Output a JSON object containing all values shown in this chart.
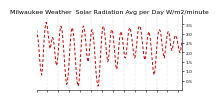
{
  "title": "Milwaukee Weather  Solar Radiation Avg per Day W/m2/minute",
  "title_fontsize": 4.5,
  "bg_color": "#ffffff",
  "line_color": "#cc0000",
  "grid_color": "#bbbbbb",
  "y_values": [
    3.2,
    3.0,
    2.8,
    2.5,
    2.1,
    1.6,
    1.2,
    0.9,
    0.8,
    1.1,
    1.6,
    2.2,
    2.8,
    3.2,
    3.5,
    3.6,
    3.5,
    3.3,
    3.0,
    2.7,
    2.4,
    2.2,
    2.3,
    2.5,
    2.7,
    2.8,
    2.7,
    2.5,
    2.2,
    1.8,
    1.5,
    1.3,
    1.4,
    1.7,
    2.1,
    2.6,
    3.0,
    3.3,
    3.4,
    3.3,
    3.1,
    2.7,
    2.3,
    1.8,
    1.3,
    0.8,
    0.5,
    0.3,
    0.4,
    0.7,
    1.1,
    1.7,
    2.2,
    2.7,
    3.1,
    3.3,
    3.3,
    3.1,
    2.8,
    2.4,
    1.9,
    1.4,
    0.9,
    0.5,
    0.3,
    0.2,
    0.4,
    0.8,
    1.4,
    2.0,
    2.6,
    3.0,
    3.3,
    3.4,
    3.3,
    3.1,
    2.8,
    2.4,
    2.0,
    1.7,
    1.5,
    1.6,
    1.9,
    2.3,
    2.7,
    3.0,
    3.2,
    3.2,
    3.0,
    2.7,
    2.3,
    1.8,
    1.3,
    0.8,
    0.5,
    0.3,
    0.2,
    0.4,
    0.8,
    1.4,
    2.0,
    2.6,
    3.0,
    3.3,
    3.4,
    3.3,
    3.1,
    2.8,
    2.4,
    2.0,
    1.7,
    1.5,
    1.6,
    1.9,
    2.4,
    2.8,
    3.1,
    3.2,
    3.2,
    3.0,
    2.7,
    2.3,
    1.9,
    1.5,
    1.2,
    1.1,
    1.3,
    1.7,
    2.2,
    2.6,
    2.9,
    3.1,
    3.1,
    2.9,
    2.7,
    2.4,
    2.1,
    1.8,
    1.7,
    1.8,
    2.0,
    2.3,
    2.7,
    3.0,
    3.2,
    3.3,
    3.3,
    3.1,
    2.9,
    2.6,
    2.3,
    2.0,
    1.8,
    1.7,
    1.8,
    2.1,
    2.4,
    2.8,
    3.1,
    3.3,
    3.4,
    3.4,
    3.3,
    3.1,
    2.8,
    2.5,
    2.2,
    1.9,
    1.7,
    1.6,
    1.8,
    2.1,
    2.5,
    2.8,
    3.0,
    3.1,
    3.0,
    2.8,
    2.5,
    2.1,
    1.7,
    1.3,
    1.0,
    0.8,
    0.9,
    1.2,
    1.6,
    2.1,
    2.5,
    2.9,
    3.1,
    3.2,
    3.2,
    3.1,
    2.9,
    2.6,
    2.3,
    2.0,
    1.8,
    1.7,
    1.9,
    2.2,
    2.5,
    2.8,
    3.0,
    3.1,
    3.1,
    2.9,
    2.7,
    2.4,
    2.2,
    2.1,
    2.2,
    2.4,
    2.6,
    2.8,
    2.9,
    2.9,
    2.8,
    2.7,
    2.5,
    2.3,
    2.1,
    2.0,
    2.0,
    2.2,
    2.4,
    2.7
  ],
  "ylim": [
    0.0,
    4.0
  ],
  "yticks": [
    0.5,
    1.0,
    1.5,
    2.0,
    2.5,
    3.0,
    3.5
  ],
  "n_gridlines": 13,
  "tick_fontsize": 3.2,
  "linewidth": 0.7
}
